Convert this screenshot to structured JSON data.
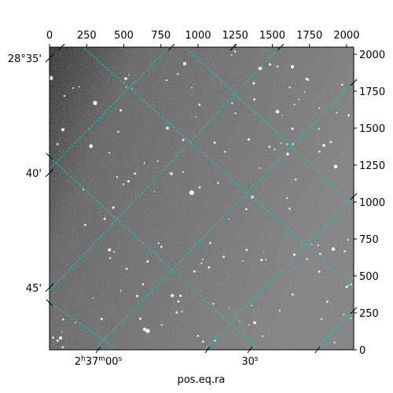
{
  "chart_data": {
    "type": "image",
    "xlabel": "pos.eq.ra",
    "ylabel": "",
    "pixel_axes": {
      "xlim": [
        0,
        2048
      ],
      "ylim": [
        0,
        2048
      ],
      "x_ticks": [
        "0",
        "250",
        "500",
        "750",
        "1000",
        "1250",
        "1500",
        "1750",
        "2000"
      ],
      "y_ticks": [
        "0",
        "250",
        "500",
        "750",
        "1000",
        "1250",
        "1500",
        "1750",
        "2000"
      ]
    },
    "world_axes": {
      "dec_ticks": [
        "28°35'",
        "40'",
        "45'"
      ],
      "ra_ticks": [
        {
          "h": "2",
          "m": "37",
          "s": "00"
        },
        {
          "s": "30"
        }
      ]
    },
    "grid": true,
    "grid_color": "#00d0d0",
    "image_colormap": "gray",
    "background_shade": "#7d7d7d"
  }
}
